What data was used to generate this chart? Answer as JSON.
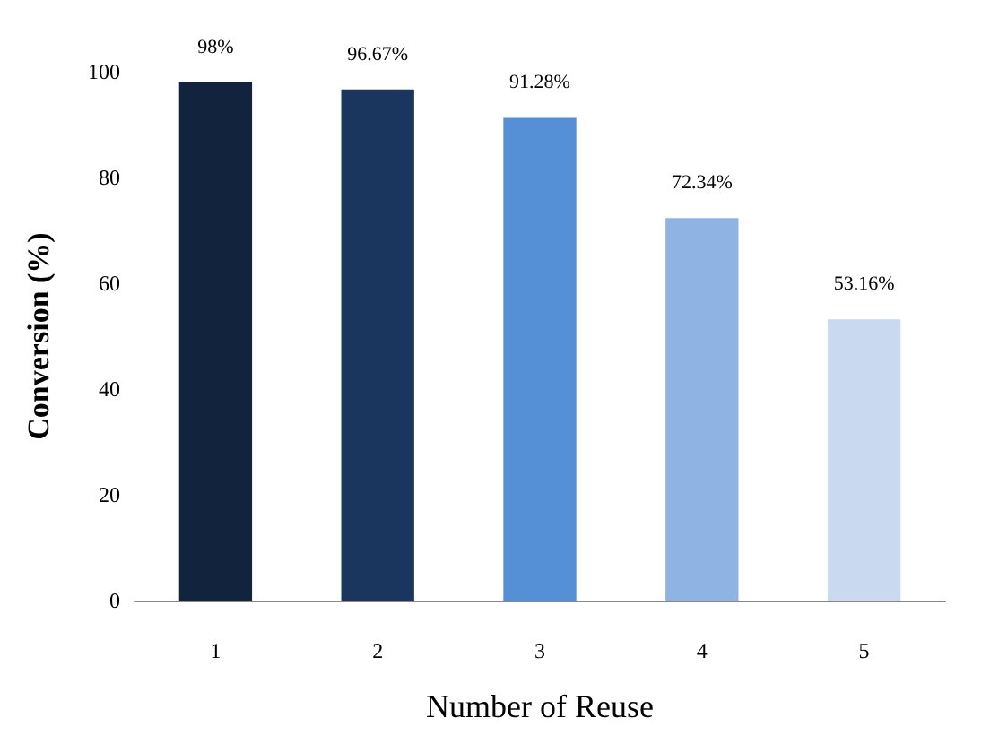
{
  "chart_data": {
    "type": "bar",
    "xlabel": "Number of Reuse",
    "ylabel": "Conversion (%)",
    "categories": [
      "1",
      "2",
      "3",
      "4",
      "5"
    ],
    "values": [
      98,
      96.67,
      91.28,
      72.34,
      53.16
    ],
    "colors": [
      "#12233d",
      "#1a365e",
      "#5590d6",
      "#8fb3e3",
      "#c8d9f0"
    ],
    "value_labels": [
      "98%",
      "96.67%",
      "91.28%",
      "72.34%",
      "53.16%"
    ],
    "ylim": [
      0,
      100
    ],
    "yticks": [
      0,
      20,
      40,
      60,
      80,
      100
    ],
    "grid": false
  }
}
